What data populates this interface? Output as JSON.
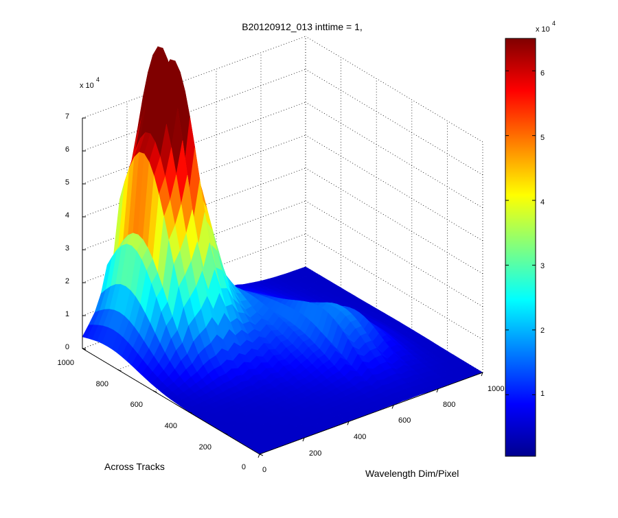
{
  "chart_data": {
    "type": "surface",
    "title": "B20120912_013 inttime = 1,",
    "xlabel": "Across Tracks",
    "ylabel": "Wavelength Dim/Pixel",
    "zlabel": "",
    "z_exponent_label": "x 10",
    "z_exponent_power": "4",
    "x_ticks": [
      "0",
      "200",
      "400",
      "600",
      "800",
      "1000"
    ],
    "y_ticks": [
      "0",
      "200",
      "400",
      "600",
      "800",
      "1000"
    ],
    "z_ticks": [
      "0",
      "1",
      "2",
      "3",
      "4",
      "5",
      "6",
      "7"
    ],
    "xlim": [
      0,
      1000
    ],
    "ylim": [
      0,
      1000
    ],
    "zlim": [
      0,
      70000
    ],
    "grid": true,
    "colormap": "jet",
    "colorbar": {
      "exponent_label": "x 10",
      "exponent_power": "4",
      "ticks": [
        "1",
        "2",
        "3",
        "4",
        "5",
        "6"
      ],
      "range": [
        500,
        65000
      ]
    },
    "peak_value": 65000
  }
}
